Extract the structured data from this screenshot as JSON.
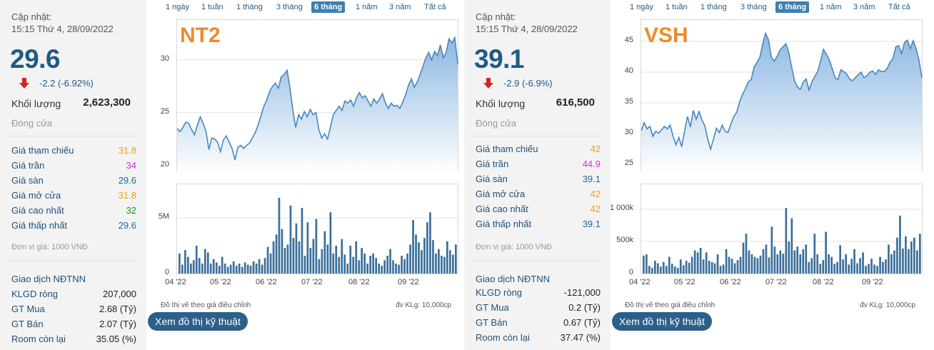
{
  "ranges": [
    "1 ngày",
    "1 tuần",
    "1 tháng",
    "3 tháng",
    "6 tháng",
    "1 năm",
    "3 năm",
    "Tất cả"
  ],
  "active_range": "6 tháng",
  "panels": [
    {
      "ticker": "NT2",
      "updated_label": "Cập nhật:",
      "updated_time": "15:15 Thứ 4, 28/09/2022",
      "price": "29.6",
      "change": "-2.2 (-6.92%)",
      "volume_label": "Khối lượng",
      "volume_value": "2,623,300",
      "close_label": "Đóng cửa",
      "rows": [
        {
          "label": "Giá tham chiếu",
          "value": "31.8",
          "cls": "c-ref"
        },
        {
          "label": "Giá trần",
          "value": "34",
          "cls": "c-ceil"
        },
        {
          "label": "Giá sàn",
          "value": "29.6",
          "cls": "c-floor"
        },
        {
          "label": "Giá mở cửa",
          "value": "31.8",
          "cls": "c-ref"
        },
        {
          "label": "Giá cao nhất",
          "value": "32",
          "cls": "c-up"
        },
        {
          "label": "Giá thấp nhất",
          "value": "29.6",
          "cls": "c-floor"
        }
      ],
      "unit_note": "Đơn vị giá: 1000 VNĐ",
      "ndt_title": "Giao dịch NĐTNN",
      "ndt_rows": [
        {
          "label": "KLGD ròng",
          "value": "207,000"
        },
        {
          "label": "GT Mua",
          "value": "2.68 (Tỷ)"
        },
        {
          "label": "GT Bán",
          "value": "2.07 (Tỷ)"
        },
        {
          "label": "Room còn lại",
          "value": "35.05 (%)"
        }
      ],
      "note_left": "Đồ thị vẽ theo giá điều chỉnh",
      "note_right": "đv KLg: 10,000cp",
      "tech_button": "Xem đồ thị kỹ thuật"
    },
    {
      "ticker": "VSH",
      "updated_label": "Cập nhật:",
      "updated_time": "15:15 Thứ 4, 28/09/2022",
      "price": "39.1",
      "change": "-2.9 (-6.9%)",
      "volume_label": "Khối lượng",
      "volume_value": "616,500",
      "close_label": "Đóng cửa",
      "rows": [
        {
          "label": "Giá tham chiếu",
          "value": "42",
          "cls": "c-ref"
        },
        {
          "label": "Giá trần",
          "value": "44.9",
          "cls": "c-ceil"
        },
        {
          "label": "Giá sàn",
          "value": "39.1",
          "cls": "c-floor"
        },
        {
          "label": "Giá mở cửa",
          "value": "42",
          "cls": "c-ref"
        },
        {
          "label": "Giá cao nhất",
          "value": "42",
          "cls": "c-ref"
        },
        {
          "label": "Giá thấp nhất",
          "value": "39.1",
          "cls": "c-floor"
        }
      ],
      "unit_note": "Đơn vị giá: 1000 VNĐ",
      "ndt_title": "Giao dịch NĐTNN",
      "ndt_rows": [
        {
          "label": "KLGD ròng",
          "value": "-121,000"
        },
        {
          "label": "GT Mua",
          "value": "0.2 (Tỷ)"
        },
        {
          "label": "GT Bán",
          "value": "0.67 (Tỷ)"
        },
        {
          "label": "Room còn lại",
          "value": "37.47 (%)"
        }
      ],
      "note_left": "Đồ thị vẽ theo giá điều chỉnh",
      "note_right": "đv KLg: 10,000cp",
      "tech_button": "Xem đồ thị kỹ thuật"
    }
  ],
  "colors": {
    "line": "#4a86bd",
    "area_top": "#7fb0e0",
    "area_bottom": "#ffffff",
    "bars": "#3a6f9a",
    "grid": "#e3e3e3"
  },
  "chart_data": [
    {
      "type": "area",
      "title": "NT2",
      "x_ticks": [
        "04 '22",
        "05 '22",
        "06 '22",
        "07 '22",
        "08 '22",
        "09 '22"
      ],
      "price_ticks": [
        "30",
        "25",
        "20"
      ],
      "price_ylim": [
        19.5,
        33.5
      ],
      "price": [
        23.5,
        23.2,
        23.6,
        24.1,
        24.0,
        23.4,
        22.9,
        23.8,
        24.6,
        24.0,
        23.2,
        21.5,
        22.6,
        22.5,
        22.2,
        21.3,
        22.4,
        22.8,
        22.2,
        21.6,
        20.5,
        21.7,
        21.9,
        21.6,
        21.9,
        22.1,
        22.6,
        23.1,
        23.8,
        24.7,
        25.6,
        26.2,
        27.0,
        27.5,
        27.8,
        27.3,
        28.4,
        28.6,
        29.0,
        27.4,
        25.2,
        23.6,
        24.8,
        24.4,
        25.1,
        24.6,
        25.3,
        24.8,
        25.0,
        23.4,
        22.6,
        23.0,
        22.5,
        23.6,
        24.8,
        25.2,
        25.6,
        25.2,
        26.1,
        25.9,
        26.2,
        25.6,
        26.4,
        26.9,
        26.4,
        26.6,
        26.1,
        25.6,
        26.3,
        25.9,
        26.3,
        26.8,
        25.9,
        25.4,
        25.9,
        25.6,
        25.7,
        25.4,
        26.0,
        26.7,
        27.6,
        28.2,
        27.4,
        27.9,
        28.6,
        29.4,
        30.2,
        30.7,
        30.0,
        30.8,
        30.4,
        31.4,
        30.2,
        30.7,
        32.0,
        31.6,
        32.1,
        29.6
      ],
      "volume_ticks": [
        "5M",
        "0"
      ],
      "volume_ylim": [
        0,
        7500000
      ],
      "volume": [
        1800000,
        800000,
        2100000,
        1500000,
        900000,
        1200000,
        2500000,
        1400000,
        900000,
        2200000,
        1900000,
        900000,
        1300000,
        1000000,
        700000,
        1500000,
        900000,
        600000,
        800000,
        1100000,
        700000,
        900000,
        600000,
        1000000,
        800000,
        700000,
        1100000,
        900000,
        1300000,
        800000,
        1400000,
        2400000,
        1800000,
        2900000,
        3500000,
        6800000,
        4000000,
        2300000,
        2600000,
        6100000,
        3200000,
        4500000,
        2900000,
        5900000,
        1600000,
        4600000,
        2300000,
        3100000,
        4900000,
        1300000,
        2200000,
        3800000,
        2600000,
        5500000,
        1800000,
        2500000,
        1500000,
        3100000,
        1700000,
        900000,
        2500000,
        1500000,
        2900000,
        1200000,
        2300000,
        1800000,
        900000,
        1600000,
        1800000,
        1400000,
        900000,
        700000,
        1200000,
        1600000,
        2200000,
        1200000,
        900000,
        800000,
        1600000,
        1300000,
        1800000,
        2600000,
        4800000,
        3500000,
        2800000,
        2100000,
        3200000,
        4600000,
        5500000,
        3000000,
        1800000,
        2200000,
        1600000,
        1500000,
        2900000,
        2100000,
        1700000,
        2600000
      ]
    },
    {
      "type": "area",
      "title": "VSH",
      "x_ticks": [
        "04 '22",
        "05 '22",
        "06 '22",
        "07 '22",
        "08 '22",
        "09 '22"
      ],
      "price_ticks": [
        "45",
        "40",
        "35",
        "30",
        "25"
      ],
      "price_ylim": [
        24,
        48
      ],
      "price": [
        30.5,
        31.8,
        30.8,
        31.2,
        29.6,
        30.4,
        30.1,
        30.6,
        31.2,
        30.8,
        31.4,
        29.6,
        28.2,
        29.4,
        27.9,
        30.5,
        32.8,
        31.1,
        33.8,
        32.4,
        33.6,
        32.2,
        31.3,
        29.1,
        27.5,
        29.2,
        30.9,
        30.2,
        31.4,
        30.4,
        30.2,
        31.6,
        32.8,
        33.5,
        35.2,
        36.4,
        37.3,
        38.4,
        38.8,
        40.8,
        41.6,
        42.4,
        44.6,
        46.3,
        45.2,
        42.4,
        41.8,
        42.6,
        43.6,
        44.1,
        44.6,
        43.2,
        40.8,
        38.6,
        37.6,
        37.2,
        38.4,
        38.9,
        37.1,
        38.4,
        39.3,
        40.1,
        41.8,
        43.7,
        42.9,
        42.0,
        40.6,
        39.1,
        38.8,
        40.4,
        40.1,
        39.7,
        38.9,
        38.6,
        39.1,
        39.6,
        40.0,
        39.1,
        39.4,
        40.0,
        40.2,
        39.6,
        40.4,
        40.1,
        40.1,
        40.6,
        41.6,
        42.2,
        44.1,
        44.3,
        43.0,
        44.8,
        45.2,
        43.8,
        45.1,
        43.8,
        42.0,
        39.1
      ],
      "volume_ticks": [
        "1 000k",
        "500k",
        "0"
      ],
      "volume_ylim": [
        0,
        1300000
      ],
      "volume": [
        280000,
        300000,
        120000,
        90000,
        200000,
        160000,
        110000,
        180000,
        120000,
        260000,
        150000,
        110000,
        90000,
        220000,
        130000,
        200000,
        170000,
        260000,
        360000,
        330000,
        400000,
        220000,
        330000,
        200000,
        180000,
        160000,
        300000,
        120000,
        140000,
        380000,
        260000,
        230000,
        160000,
        210000,
        260000,
        480000,
        620000,
        360000,
        300000,
        260000,
        240000,
        280000,
        380000,
        450000,
        250000,
        730000,
        420000,
        300000,
        360000,
        310000,
        1020000,
        500000,
        860000,
        360000,
        420000,
        300000,
        380000,
        450000,
        180000,
        240000,
        620000,
        300000,
        150000,
        210000,
        650000,
        300000,
        260000,
        150000,
        180000,
        440000,
        220000,
        300000,
        140000,
        230000,
        380000,
        160000,
        240000,
        330000,
        120000,
        150000,
        230000,
        140000,
        120000,
        260000,
        180000,
        220000,
        450000,
        300000,
        360000,
        560000,
        900000,
        390000,
        580000,
        380000,
        500000,
        560000,
        360000,
        620000
      ]
    }
  ]
}
